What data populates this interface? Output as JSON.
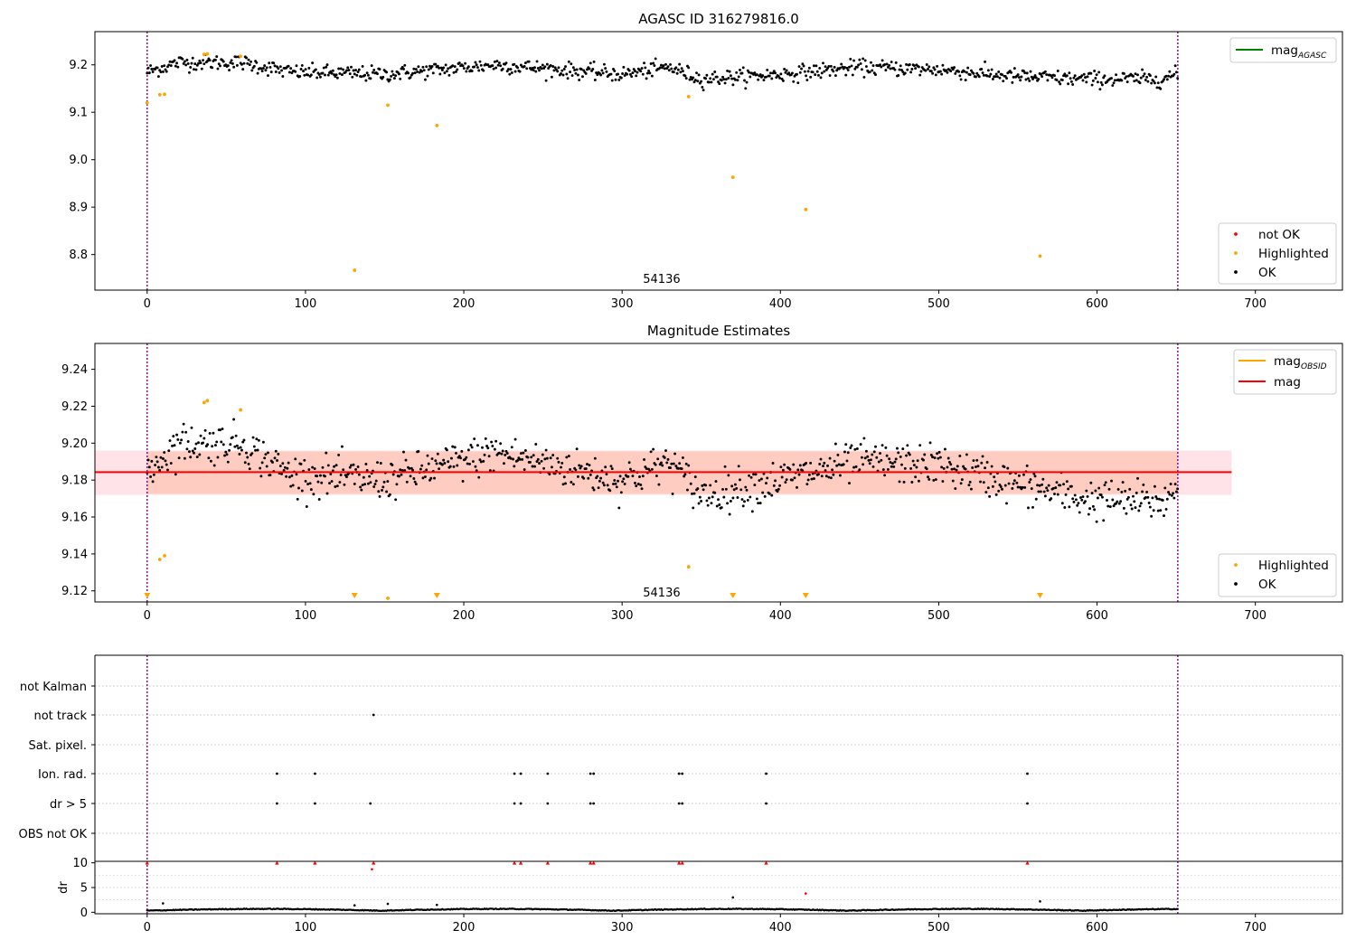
{
  "chart_data": [
    {
      "type": "scatter",
      "id": "top",
      "title": "AGASC ID 316279816.0",
      "xlim": [
        -33,
        755
      ],
      "ylim": [
        8.725,
        9.27
      ],
      "xticks": [
        0,
        100,
        200,
        300,
        400,
        500,
        600,
        700
      ],
      "yticks": [
        8.8,
        8.9,
        9.0,
        9.1,
        9.2
      ],
      "ytick_labels": [
        "8.8",
        "8.9",
        "9.0",
        "9.1",
        "9.2"
      ],
      "vlines": [
        0,
        651
      ],
      "vline_color": "#800080",
      "annotation": {
        "text": "54136",
        "x": 325,
        "y": 8.74
      },
      "ok_color": "#000000",
      "highlight_color": "#ffa500",
      "notok_color": "#ff0000",
      "ok_trend": [
        [
          0,
          9.185
        ],
        [
          20,
          9.205
        ],
        [
          60,
          9.205
        ],
        [
          90,
          9.185
        ],
        [
          150,
          9.18
        ],
        [
          220,
          9.2
        ],
        [
          300,
          9.18
        ],
        [
          330,
          9.195
        ],
        [
          350,
          9.17
        ],
        [
          400,
          9.18
        ],
        [
          450,
          9.195
        ],
        [
          500,
          9.19
        ],
        [
          550,
          9.175
        ],
        [
          590,
          9.17
        ],
        [
          640,
          9.17
        ],
        [
          651,
          9.18
        ]
      ],
      "ok_spread": 0.018,
      "highlighted": [
        [
          0,
          9.12
        ],
        [
          8,
          9.137
        ],
        [
          11,
          9.138
        ],
        [
          36,
          9.222
        ],
        [
          38,
          9.223
        ],
        [
          59,
          9.218
        ],
        [
          131,
          8.767
        ],
        [
          152,
          9.115
        ],
        [
          183,
          9.072
        ],
        [
          342,
          9.133
        ],
        [
          370,
          8.963
        ],
        [
          416,
          8.895
        ],
        [
          564,
          8.797
        ]
      ],
      "legend_lines": [
        {
          "label": "mag",
          "sub": "AGASC",
          "color": "#008000"
        }
      ],
      "legend_points": [
        {
          "label": "not OK",
          "color": "#ff0000"
        },
        {
          "label": "Highlighted",
          "color": "#ffa500"
        },
        {
          "label": "OK",
          "color": "#000000"
        }
      ]
    },
    {
      "type": "scatter",
      "id": "middle",
      "title": "Magnitude Estimates",
      "xlim": [
        -33,
        755
      ],
      "ylim": [
        9.114,
        9.254
      ],
      "xticks": [
        0,
        100,
        200,
        300,
        400,
        500,
        600,
        700
      ],
      "yticks": [
        9.12,
        9.14,
        9.16,
        9.18,
        9.2,
        9.22,
        9.24
      ],
      "ytick_labels": [
        "9.12",
        "9.14",
        "9.16",
        "9.18",
        "9.20",
        "9.22",
        "9.24"
      ],
      "vlines": [
        0,
        651
      ],
      "vline_color": "#800080",
      "annotation": {
        "text": "54136",
        "x": 325,
        "y": 9.117
      },
      "mag_line": {
        "value": 9.1843,
        "x0": -33,
        "x1": 685,
        "color": "#ff0000"
      },
      "band_outer": {
        "y0": 9.172,
        "y1": 9.196,
        "x0": -33,
        "x1": 685,
        "color": "#ffc0cb"
      },
      "band_inner": {
        "y0": 9.1725,
        "y1": 9.1955,
        "x0": 0,
        "x1": 651,
        "color": "#ffa07a"
      },
      "ok_trend": [
        [
          0,
          9.185
        ],
        [
          20,
          9.2
        ],
        [
          60,
          9.2
        ],
        [
          90,
          9.183
        ],
        [
          150,
          9.18
        ],
        [
          220,
          9.195
        ],
        [
          300,
          9.18
        ],
        [
          330,
          9.19
        ],
        [
          350,
          9.172
        ],
        [
          400,
          9.18
        ],
        [
          450,
          9.19
        ],
        [
          500,
          9.188
        ],
        [
          550,
          9.178
        ],
        [
          590,
          9.17
        ],
        [
          640,
          9.168
        ],
        [
          651,
          9.175
        ]
      ],
      "ok_spread": 0.012,
      "highlighted": [
        [
          8,
          9.137
        ],
        [
          11,
          9.139
        ],
        [
          36,
          9.222
        ],
        [
          38,
          9.223
        ],
        [
          59,
          9.218
        ],
        [
          152,
          9.116
        ],
        [
          342,
          9.133
        ]
      ],
      "below_markers": [
        0,
        131,
        183,
        370,
        416,
        564
      ],
      "legend_lines": [
        {
          "label": "mag",
          "sub": "OBSID",
          "color": "#ffa500"
        },
        {
          "label": "mag",
          "sub": "",
          "color": "#ff0000"
        }
      ],
      "legend_points": [
        {
          "label": "Highlighted",
          "color": "#ffa500"
        },
        {
          "label": "OK",
          "color": "#000000"
        }
      ]
    },
    {
      "type": "scatter",
      "id": "flags",
      "xlim": [
        -33,
        755
      ],
      "categories": [
        "not Kalman",
        "not track",
        "Sat. pixel.",
        "Ion. rad.",
        "dr > 5",
        "OBS not OK"
      ],
      "vlines": [
        0,
        651
      ],
      "vline_color": "#800080",
      "points": {
        "not track": [
          143
        ],
        "Ion. rad.": [
          82,
          106,
          232,
          236,
          253,
          280,
          282,
          336,
          338,
          391,
          556
        ],
        "dr > 5": [
          82,
          106,
          141,
          232,
          236,
          253,
          280,
          282,
          336,
          338,
          391,
          556
        ]
      }
    },
    {
      "type": "scatter",
      "id": "dr",
      "ylabel": "dr",
      "xlim": [
        -33,
        755
      ],
      "ylim": [
        -0.3,
        10.3
      ],
      "xticks": [
        0,
        100,
        200,
        300,
        400,
        500,
        600,
        700
      ],
      "yticks": [
        0,
        5,
        10
      ],
      "ytick_labels": [
        "0",
        "5",
        "10"
      ],
      "vlines": [
        0,
        651
      ],
      "vline_color": "#800080",
      "capped_markers": [
        0,
        82,
        106,
        143,
        232,
        236,
        253,
        280,
        282,
        336,
        338,
        391,
        556
      ],
      "outliers_black": [
        [
          10,
          1.8
        ],
        [
          131,
          1.4
        ],
        [
          152,
          1.7
        ],
        [
          183,
          1.5
        ],
        [
          370,
          3.0
        ],
        [
          564,
          2.2
        ]
      ],
      "outliers_red": [
        [
          416,
          3.8
        ],
        [
          142,
          8.7
        ]
      ]
    }
  ]
}
